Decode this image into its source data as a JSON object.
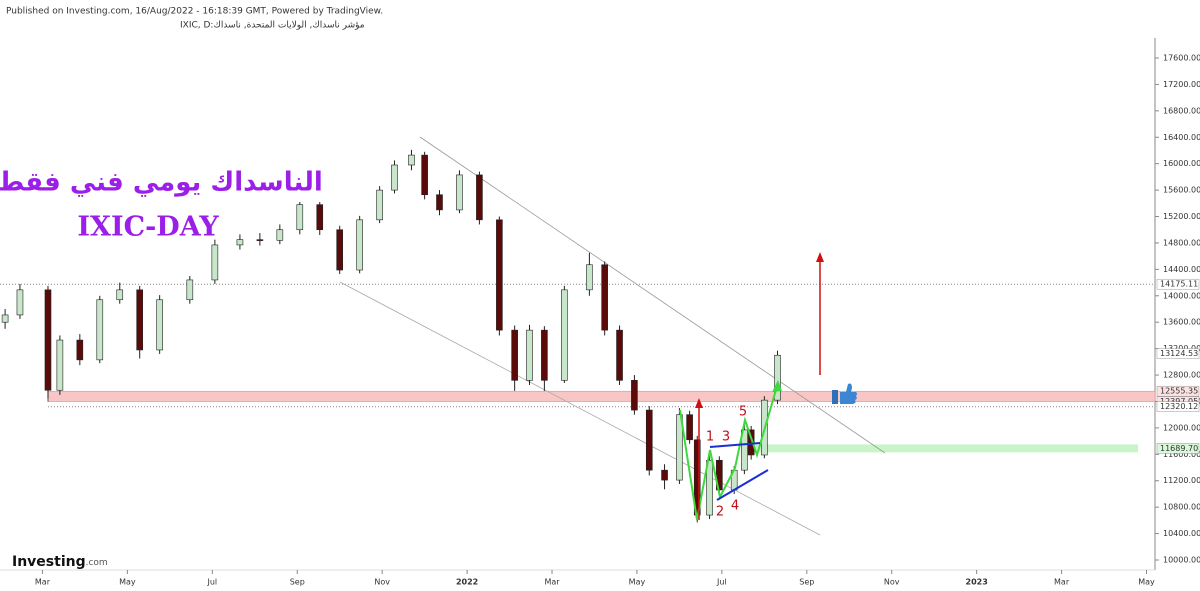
{
  "header": {
    "published": "Published on Investing.com, 16/Aug/2022 - 16:18:39 GMT, Powered by TradingView.",
    "symbol": "مؤشر ناسداك, الولايات المتحدة, ناسداك:IXIC, D"
  },
  "chart_data": {
    "type": "candlestick",
    "title": "الناسداك يومي فني فقط",
    "subtitle": "IXIC-DAY",
    "logo": "Investing",
    "logo_suffix": ".com",
    "x": [
      1.12,
      1.47,
      2.13,
      2.41,
      2.88,
      3.35,
      3.82,
      4.29,
      4.76,
      5.47,
      6.06,
      6.65,
      7.12,
      7.59,
      8.06,
      8.53,
      9.0,
      9.47,
      9.94,
      10.29,
      10.69,
      11.0,
      11.35,
      11.82,
      12.29,
      12.76,
      13.12,
      13.47,
      13.82,
      14.29,
      14.88,
      15.24,
      15.59,
      15.94,
      16.29,
      16.65,
      17.0,
      17.24,
      17.42,
      17.71,
      17.94,
      18.29,
      18.53,
      18.69,
      19.0,
      19.31
    ],
    "open": [
      13600,
      13710,
      14090,
      12570,
      13330,
      13030,
      13940,
      14090,
      13180,
      13940,
      14240,
      14770,
      14850,
      14840,
      15000,
      15380,
      15000,
      14390,
      15150,
      15600,
      15980,
      16130,
      15530,
      15300,
      15830,
      15150,
      13480,
      12720,
      13480,
      12720,
      14090,
      14470,
      13480,
      12720,
      12270,
      11360,
      11210,
      12200,
      11820,
      10680,
      11510,
      11060,
      11360,
      11970,
      11590,
      12420
    ],
    "high": [
      13800,
      14180,
      14150,
      13400,
      13420,
      14000,
      14200,
      14150,
      14010,
      14300,
      14850,
      14930,
      14950,
      15080,
      15420,
      15420,
      15060,
      15210,
      15660,
      16050,
      16210,
      16180,
      15600,
      15900,
      15880,
      15200,
      13550,
      13560,
      13540,
      14150,
      14650,
      14520,
      13550,
      12800,
      12330,
      11450,
      12300,
      12260,
      11880,
      11580,
      11570,
      11420,
      12050,
      12030,
      12480,
      13170
    ],
    "low": [
      13500,
      13650,
      12450,
      12500,
      12950,
      12980,
      13880,
      13050,
      13120,
      13880,
      14180,
      14700,
      14760,
      14780,
      14930,
      14920,
      14330,
      14340,
      15100,
      15550,
      15900,
      15460,
      15220,
      15250,
      15080,
      13400,
      12560,
      12650,
      12560,
      12680,
      14000,
      13400,
      12650,
      12200,
      11280,
      11070,
      11150,
      11760,
      10570,
      10620,
      10980,
      11000,
      11300,
      11520,
      11540,
      12360
    ],
    "close": [
      13710,
      14090,
      12570,
      13330,
      13030,
      13940,
      14090,
      13180,
      13940,
      14240,
      14770,
      14850,
      14840,
      15000,
      15380,
      15000,
      14390,
      15150,
      15600,
      15980,
      16130,
      15530,
      15300,
      15830,
      15150,
      13480,
      12720,
      13480,
      12720,
      14090,
      14470,
      13480,
      12720,
      12270,
      11360,
      11210,
      12200,
      11820,
      10680,
      11510,
      11060,
      11360,
      11970,
      11590,
      12420,
      13100
    ],
    "up_color": "#c8e6c9",
    "down_color": "#5b0a0a",
    "xlim": [
      1.0,
      28.2
    ],
    "xticks": [
      {
        "value": 2,
        "label": "Mar"
      },
      {
        "value": 4,
        "label": "May"
      },
      {
        "value": 6,
        "label": "Jul"
      },
      {
        "value": 8,
        "label": "Sep"
      },
      {
        "value": 10,
        "label": "Nov"
      },
      {
        "value": 12,
        "label": "2022"
      },
      {
        "value": 14,
        "label": "Mar"
      },
      {
        "value": 16,
        "label": "May"
      },
      {
        "value": 18,
        "label": "Jul"
      },
      {
        "value": 20,
        "label": "Sep"
      },
      {
        "value": 22,
        "label": "Nov"
      },
      {
        "value": 24,
        "label": "2023"
      },
      {
        "value": 26,
        "label": "Mar"
      },
      {
        "value": 28,
        "label": "May"
      }
    ],
    "ylim": [
      10000,
      17600
    ],
    "yticks": [
      {
        "value": 10000,
        "label": "10000.00"
      },
      {
        "value": 10400,
        "label": "10400.00"
      },
      {
        "value": 10800,
        "label": "10800.00"
      },
      {
        "value": 11200,
        "label": "11200.00"
      },
      {
        "value": 11600,
        "label": "11600.00"
      },
      {
        "value": 12000,
        "label": "12000.00"
      },
      {
        "value": 12400,
        "label": "12400.00"
      },
      {
        "value": 12800,
        "label": "12800.00"
      },
      {
        "value": 13200,
        "label": "13200.00"
      },
      {
        "value": 13600,
        "label": "13600.00"
      },
      {
        "value": 14000,
        "label": "14000.00"
      },
      {
        "value": 14400,
        "label": "14400.00"
      },
      {
        "value": 14800,
        "label": "14800.00"
      },
      {
        "value": 15200,
        "label": "15200.00"
      },
      {
        "value": 15600,
        "label": "15600.00"
      },
      {
        "value": 16000,
        "label": "16000.00"
      },
      {
        "value": 16400,
        "label": "16400.00"
      },
      {
        "value": 16800,
        "label": "16800.00"
      },
      {
        "value": 17200,
        "label": "17200.00"
      },
      {
        "value": 17600,
        "label": "17600.00"
      }
    ],
    "levels": [
      {
        "value": 14175.11,
        "label": "14175.11"
      },
      {
        "value": 13124.53,
        "label": "13124.53"
      },
      {
        "value": 12555.35,
        "label": "12555.35"
      },
      {
        "value": 12397.05,
        "label": "12397.05"
      },
      {
        "value": 12320.12,
        "label": "12320.12"
      },
      {
        "value": 11689.7,
        "label": "11689.70"
      }
    ],
    "wave_labels": [
      "1",
      "2",
      "3",
      "4",
      "5"
    ]
  }
}
